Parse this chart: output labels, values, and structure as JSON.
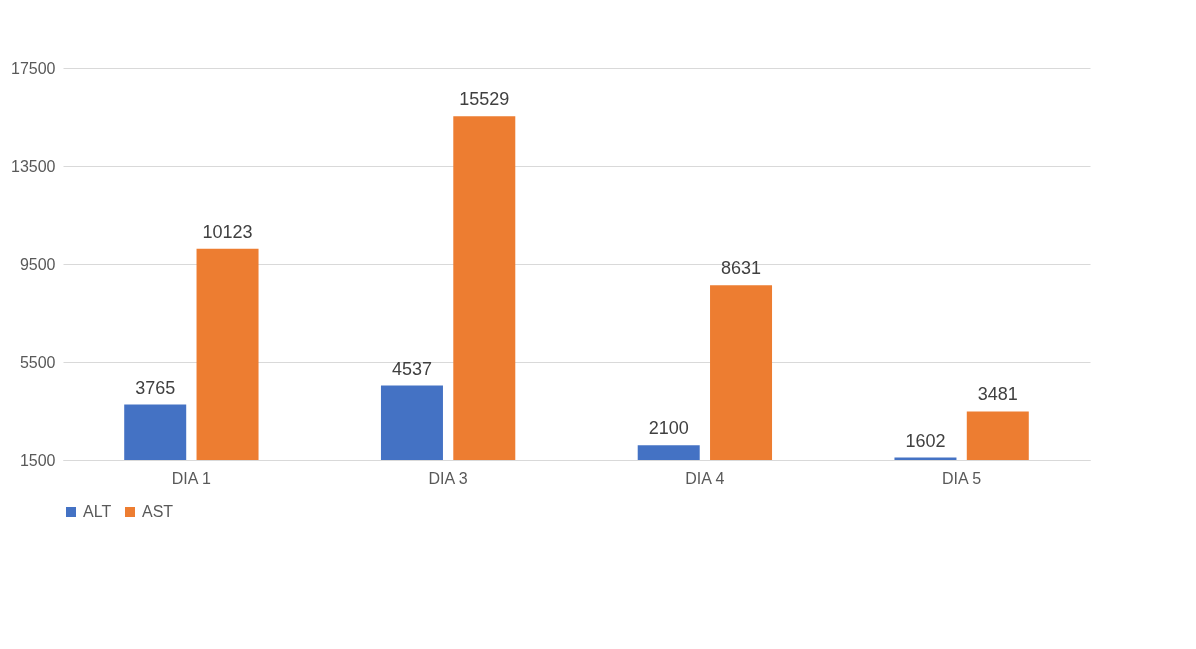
{
  "chart_data": {
    "type": "bar",
    "categories": [
      "DIA 1",
      "DIA 3",
      "DIA 4",
      "DIA 5"
    ],
    "series": [
      {
        "name": "ALT",
        "color": "#4472c4",
        "values": [
          3765,
          4537,
          2100,
          1602
        ]
      },
      {
        "name": "AST",
        "color": "#ed7d31",
        "values": [
          10123,
          15529,
          8631,
          3481
        ]
      }
    ],
    "ylim": [
      1500,
      17500
    ],
    "yticks": [
      1500,
      5500,
      9500,
      13500,
      17500
    ],
    "grid": "y",
    "legend": "bottom",
    "data_labels": true
  }
}
